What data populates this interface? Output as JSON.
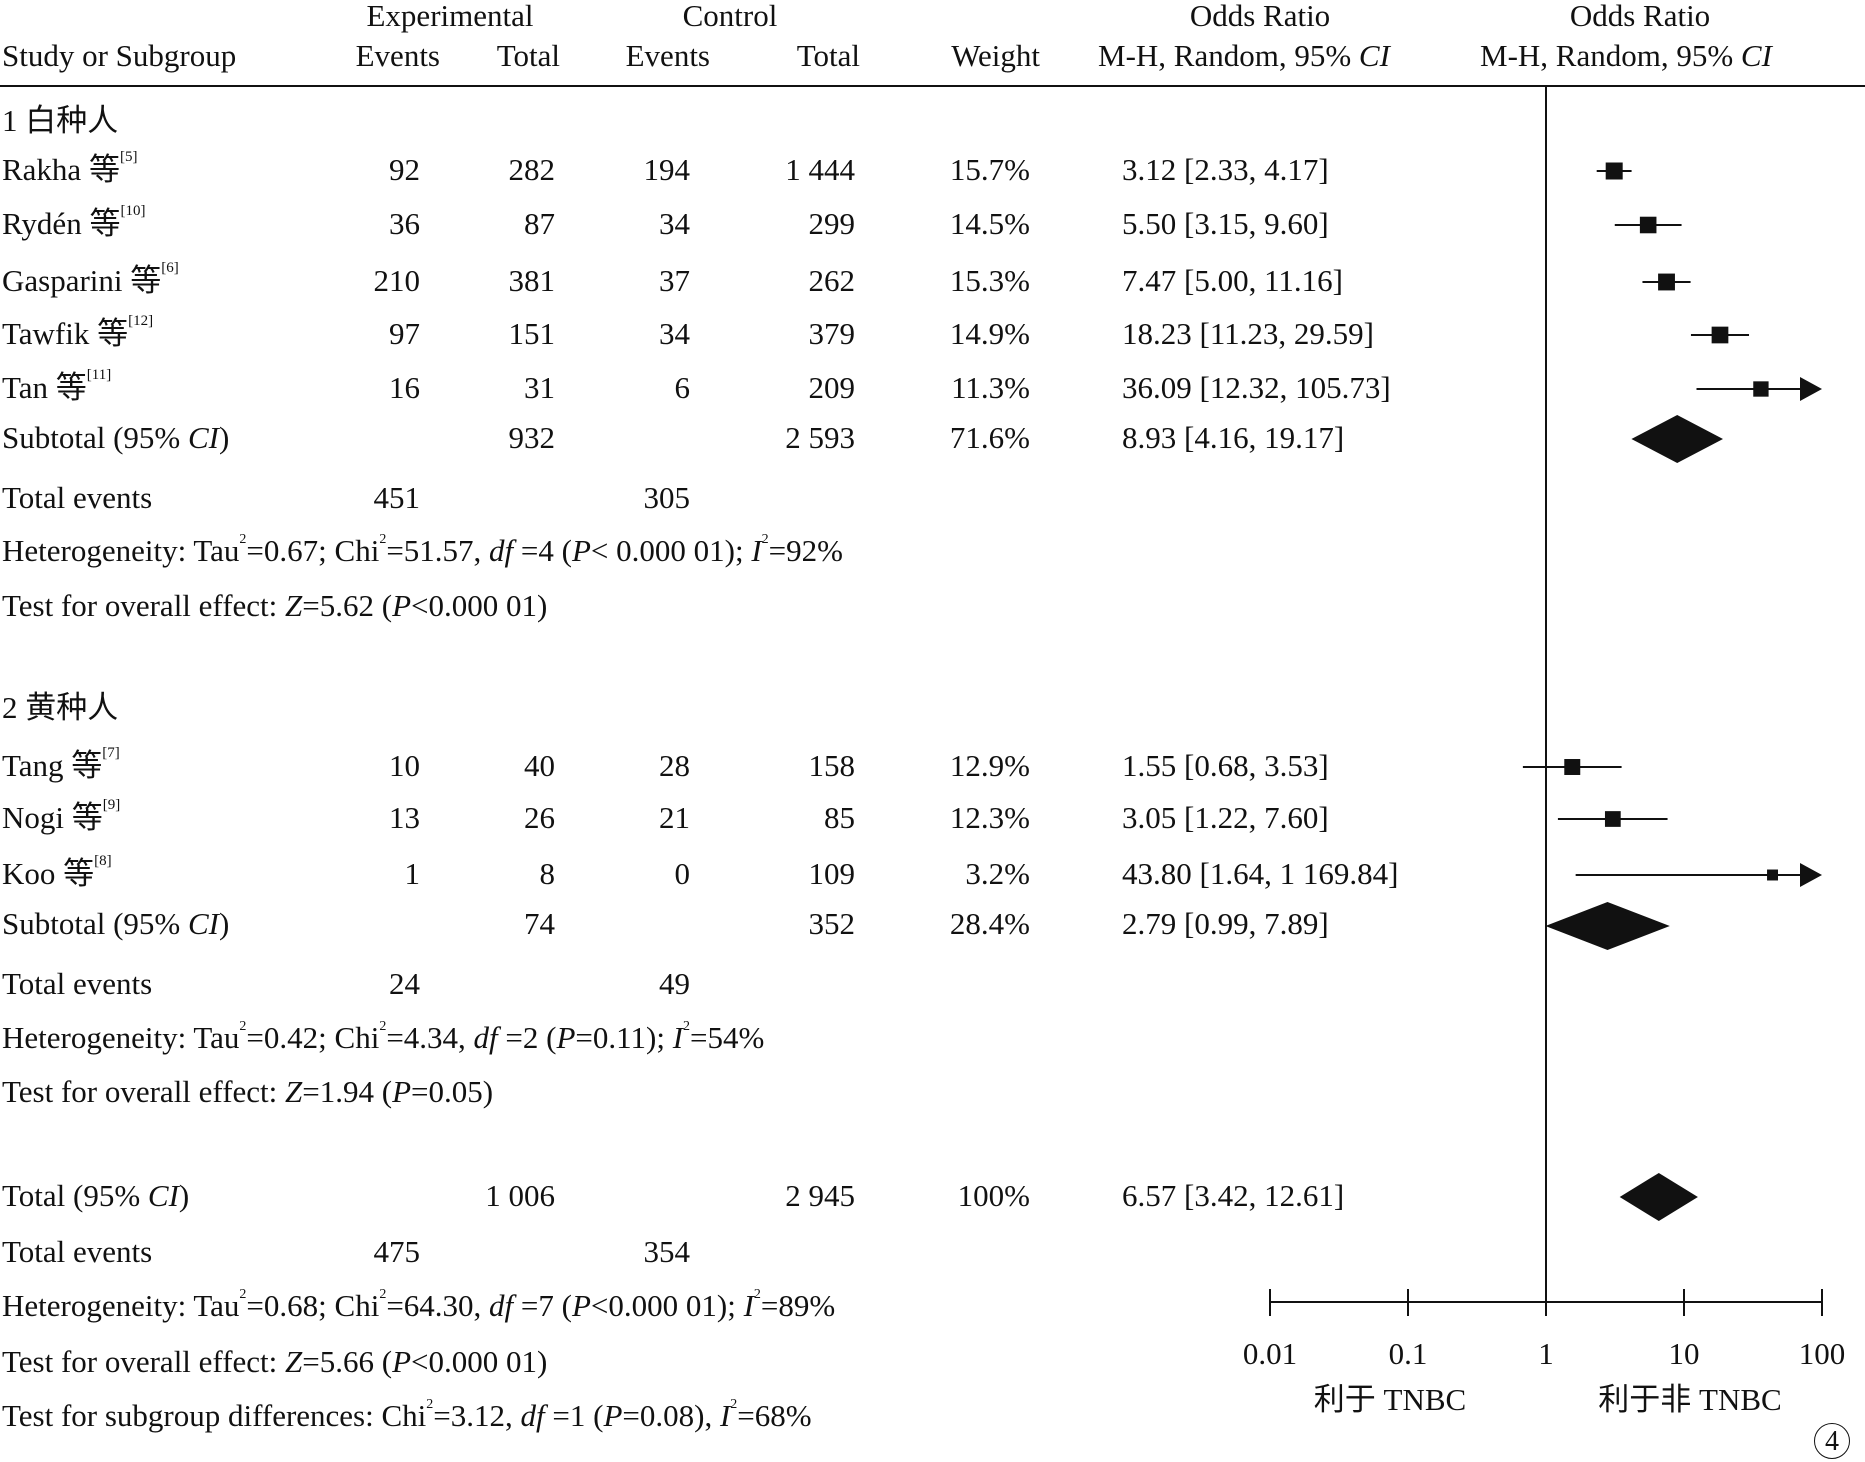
{
  "figure_label": "4",
  "headers": {
    "group_experimental": "Experimental",
    "group_control": "Control",
    "odds_ratio_left": "Odds Ratio",
    "odds_ratio_right": "Odds Ratio",
    "study": "Study or Subgroup",
    "events": "Events",
    "total": "Total",
    "weight": "Weight",
    "method": "M-H, Random, 95% ",
    "ci": "CI"
  },
  "labels": {
    "total_events": "Total events"
  },
  "subgroups": [
    {
      "title": "1  白种人",
      "studies": [
        {
          "name": "Rakha 等",
          "ref": "[5]",
          "exp_events": "92",
          "exp_total": "282",
          "ctl_events": "194",
          "ctl_total": "1 444",
          "weight": "15.7%",
          "or_text": "3.12 [2.33, 4.17]"
        },
        {
          "name": "Rydén 等",
          "ref": "[10]",
          "exp_events": "36",
          "exp_total": "87",
          "ctl_events": "34",
          "ctl_total": "299",
          "weight": "14.5%",
          "or_text": "5.50 [3.15, 9.60]"
        },
        {
          "name": "Gasparini 等",
          "ref": "[6]",
          "exp_events": "210",
          "exp_total": "381",
          "ctl_events": "37",
          "ctl_total": "262",
          "weight": "15.3%",
          "or_text": "7.47 [5.00, 11.16]"
        },
        {
          "name": "Tawfik 等",
          "ref": "[12]",
          "exp_events": "97",
          "exp_total": "151",
          "ctl_events": "34",
          "ctl_total": "379",
          "weight": "14.9%",
          "or_text": "18.23 [11.23, 29.59]"
        },
        {
          "name": "Tan 等",
          "ref": "[11]",
          "exp_events": "16",
          "exp_total": "31",
          "ctl_events": "6",
          "ctl_total": "209",
          "weight": "11.3%",
          "or_text": "36.09 [12.32, 105.73]"
        }
      ],
      "subtotal": {
        "label_pre": "Subtotal (95% ",
        "label_ci": "CI",
        "label_post": ")",
        "exp_total": "932",
        "ctl_total": "2 593",
        "weight": "71.6%",
        "or_text": "8.93 [4.16, 19.17]"
      },
      "total_events": {
        "exp": "451",
        "ctl": "305"
      },
      "het": {
        "pre": "Heterogeneity: Tau",
        "sup1": "2",
        "mid1": "=0.67; Chi",
        "sup2": "2",
        "mid2": "=51.57, ",
        "df": "df",
        "mid3": " =4 (",
        "p": "P",
        "mid4": "< 0.000 01); ",
        "i": "I",
        "sup3": "2",
        "post": "=92%"
      },
      "effect": {
        "pre": "Test for overall effect: ",
        "z": "Z",
        "mid": "=5.62 (",
        "p": "P",
        "post": "<0.000 01)"
      }
    },
    {
      "title": "2  黄种人",
      "studies": [
        {
          "name": "Tang 等",
          "ref": "[7]",
          "exp_events": "10",
          "exp_total": "40",
          "ctl_events": "28",
          "ctl_total": "158",
          "weight": "12.9%",
          "or_text": "1.55 [0.68, 3.53]"
        },
        {
          "name": "Nogi 等",
          "ref": "[9]",
          "exp_events": "13",
          "exp_total": "26",
          "ctl_events": "21",
          "ctl_total": "85",
          "weight": "12.3%",
          "or_text": "3.05 [1.22, 7.60]"
        },
        {
          "name": "Koo 等",
          "ref": "[8]",
          "exp_events": "1",
          "exp_total": "8",
          "ctl_events": "0",
          "ctl_total": "109",
          "weight": "3.2%",
          "or_text": "43.80 [1.64, 1 169.84]"
        }
      ],
      "subtotal": {
        "label_pre": "Subtotal (95% ",
        "label_ci": "CI",
        "label_post": ")",
        "exp_total": "74",
        "ctl_total": "352",
        "weight": "28.4%",
        "or_text": "2.79 [0.99, 7.89]"
      },
      "total_events": {
        "exp": "24",
        "ctl": "49"
      },
      "het": {
        "pre": "Heterogeneity: Tau",
        "sup1": "2",
        "mid1": "=0.42; Chi",
        "sup2": "2",
        "mid2": "=4.34, ",
        "df": "df",
        "mid3": " =2 (",
        "p": "P",
        "mid4": "=0.11); ",
        "i": "I",
        "sup3": "2",
        "post": "=54%"
      },
      "effect": {
        "pre": "Test for overall effect: ",
        "z": "Z",
        "mid": "=1.94 (",
        "p": "P",
        "post": "=0.05)"
      }
    }
  ],
  "overall": {
    "label_pre": "Total (95% ",
    "label_ci": "CI",
    "label_post": ")",
    "exp_total": "1 006",
    "ctl_total": "2 945",
    "weight": "100%",
    "or_text": "6.57 [3.42, 12.61]",
    "total_events": {
      "exp": "475",
      "ctl": "354"
    },
    "het": {
      "pre": "Heterogeneity: Tau",
      "sup1": "2",
      "mid1": "=0.68; Chi",
      "sup2": "2",
      "mid2": "=64.30, ",
      "df": "df",
      "mid3": " =7 (",
      "p": "P",
      "mid4": "<0.000 01); ",
      "i": "I",
      "sup3": "2",
      "post": "=89%"
    },
    "effect": {
      "pre": "Test for overall effect: ",
      "z": "Z",
      "mid": "=5.66 (",
      "p": "P",
      "post": "<0.000 01)"
    },
    "subgroup_diff": {
      "pre": "Test for subgroup differences: Chi",
      "sup1": "2",
      "mid1": "=3.12, ",
      "df": "df",
      "mid2": " =1 (",
      "p": "P",
      "mid3": "=0.08), ",
      "i": "I",
      "sup2": "2",
      "post": "=68%"
    }
  },
  "chart_data": {
    "type": "forest",
    "x_scale": "log",
    "xlim": [
      0.01,
      100
    ],
    "null_line": 1,
    "ticks": [
      {
        "value": 0.01,
        "label": "0.01"
      },
      {
        "value": 0.1,
        "label": "0.1"
      },
      {
        "value": 1,
        "label": "1"
      },
      {
        "value": 10,
        "label": "10"
      },
      {
        "value": 100,
        "label": "100"
      }
    ],
    "favours_left": "利于 TNBC",
    "favours_right": "利于非 TNBC",
    "colors": {
      "marks": "#111111"
    },
    "studies": [
      {
        "name": "Rakha",
        "or": 3.12,
        "lower": 2.33,
        "upper": 4.17,
        "weight": 15.7
      },
      {
        "name": "Rydén",
        "or": 5.5,
        "lower": 3.15,
        "upper": 9.6,
        "weight": 14.5
      },
      {
        "name": "Gasparini",
        "or": 7.47,
        "lower": 5.0,
        "upper": 11.16,
        "weight": 15.3
      },
      {
        "name": "Tawfik",
        "or": 18.23,
        "lower": 11.23,
        "upper": 29.59,
        "weight": 14.9
      },
      {
        "name": "Tan",
        "or": 36.09,
        "lower": 12.32,
        "upper": 105.73,
        "weight": 11.3
      },
      {
        "name": "Tang",
        "or": 1.55,
        "lower": 0.68,
        "upper": 3.53,
        "weight": 12.9
      },
      {
        "name": "Nogi",
        "or": 3.05,
        "lower": 1.22,
        "upper": 7.6,
        "weight": 12.3
      },
      {
        "name": "Koo",
        "or": 43.8,
        "lower": 1.64,
        "upper": 1169.84,
        "weight": 3.2
      }
    ],
    "summaries": [
      {
        "name": "Subtotal 1",
        "or": 8.93,
        "lower": 4.16,
        "upper": 19.17
      },
      {
        "name": "Subtotal 2",
        "or": 2.79,
        "lower": 0.99,
        "upper": 7.89
      },
      {
        "name": "Total",
        "or": 6.57,
        "lower": 3.42,
        "upper": 12.61
      }
    ]
  }
}
